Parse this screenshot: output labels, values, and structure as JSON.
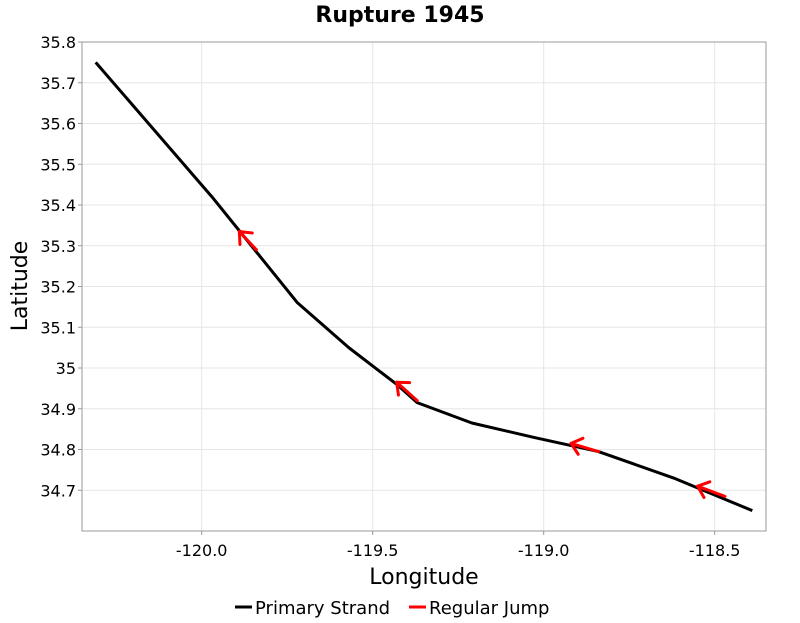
{
  "chart_data": {
    "type": "line",
    "title": "Rupture 1945",
    "xlabel": "Longitude",
    "ylabel": "Latitude",
    "xlim": [
      -120.35,
      -118.35
    ],
    "ylim": [
      34.6,
      35.8
    ],
    "xticks": [
      -120.0,
      -119.5,
      -119.0,
      -118.5
    ],
    "xtick_labels": [
      "-120.0",
      "-119.5",
      "-119.0",
      "-118.5"
    ],
    "yticks": [
      34.7,
      34.8,
      34.9,
      35.0,
      35.1,
      35.2,
      35.3,
      35.4,
      35.5,
      35.6,
      35.7,
      35.8
    ],
    "ytick_labels": [
      "34.7",
      "34.8",
      "34.9",
      "35",
      "35.1",
      "35.2",
      "35.3",
      "35.4",
      "35.5",
      "35.6",
      "35.7",
      "35.8"
    ],
    "grid": true,
    "legend_position": "bottom",
    "series": [
      {
        "name": "Primary Strand",
        "color": "#000000",
        "x": [
          -120.31,
          -119.97,
          -119.72,
          -119.57,
          -119.43,
          -119.37,
          -119.21,
          -119.03,
          -118.84,
          -118.62,
          -118.39
        ],
        "y": [
          35.75,
          35.42,
          35.16,
          35.05,
          34.96,
          34.915,
          34.865,
          34.83,
          34.795,
          34.73,
          34.65
        ]
      },
      {
        "name": "Regular Jump",
        "color": "#ff0000",
        "segments": [
          {
            "x": [
              -119.84,
              -119.89
            ],
            "y": [
              35.29,
              35.335
            ]
          },
          {
            "x": [
              -119.37,
              -119.43
            ],
            "y": [
              34.92,
              34.965
            ]
          },
          {
            "x": [
              -118.84,
              -118.92
            ],
            "y": [
              34.795,
              34.815
            ]
          },
          {
            "x": [
              -118.47,
              -118.55
            ],
            "y": [
              34.685,
              34.71
            ]
          }
        ]
      }
    ]
  }
}
